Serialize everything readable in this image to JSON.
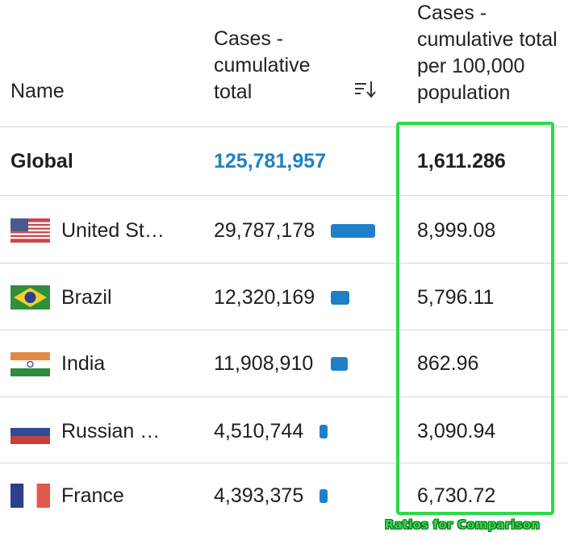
{
  "header": {
    "name": "Name",
    "cases": "Cases - cumulative total",
    "ratio": "Cases - cumulative total per 100,000 population",
    "sort_icon": "sort-descending-icon"
  },
  "rows": [
    {
      "name": "Global",
      "cases": "125,781,957",
      "ratio": "1,611.286"
    },
    {
      "name": "United St…",
      "cases": "29,787,178",
      "ratio": "8,999.08",
      "flag": "usa-flag-icon"
    },
    {
      "name": "Brazil",
      "cases": "12,320,169",
      "ratio": "5,796.11",
      "flag": "brazil-flag-icon"
    },
    {
      "name": "India",
      "cases": "11,908,910",
      "ratio": "862.96",
      "flag": "india-flag-icon"
    },
    {
      "name": "Russian …",
      "cases": "4,510,744",
      "ratio": "3,090.94",
      "flag": "russia-flag-icon"
    },
    {
      "name": "France",
      "cases": "4,393,375",
      "ratio": "6,730.72",
      "flag": "france-flag-icon"
    }
  ],
  "annotation": {
    "caption": "Ratios for Comparison",
    "color": "#2fd84a"
  },
  "colors": {
    "accent": "#1f80c8"
  }
}
